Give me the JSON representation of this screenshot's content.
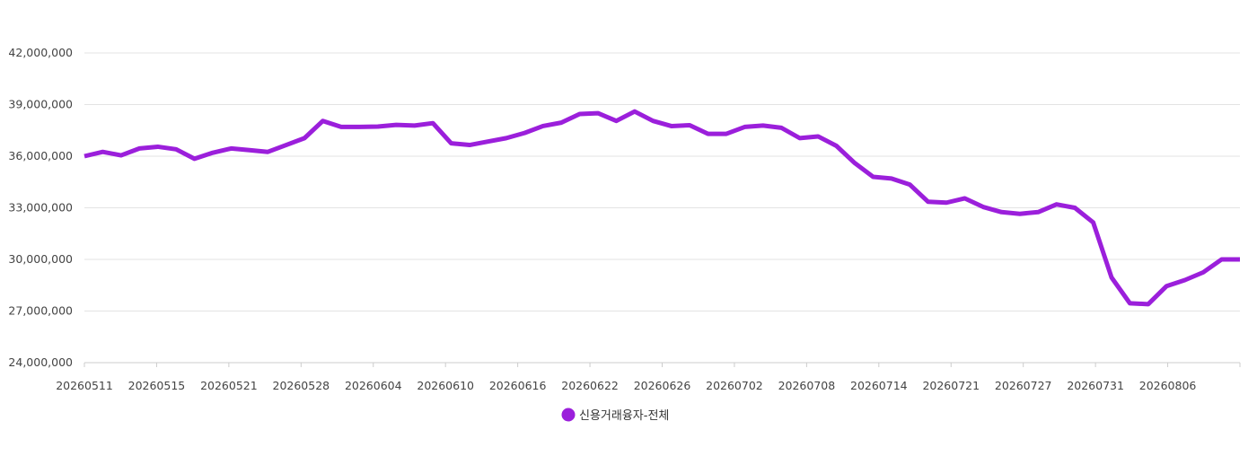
{
  "chart_data": {
    "type": "line",
    "title": "",
    "xlabel": "",
    "ylabel": "",
    "ylim": [
      24000000,
      42000000
    ],
    "y_ticks": [
      24000000,
      27000000,
      30000000,
      33000000,
      36000000,
      39000000,
      42000000
    ],
    "y_tick_labels": [
      "24,000,000",
      "27,000,000",
      "30,000,000",
      "33,000,000",
      "36,000,000",
      "39,000,000",
      "42,000,000"
    ],
    "x_tick_labels": [
      "20260511",
      "20260515",
      "20260521",
      "20260528",
      "20260604",
      "20260610",
      "20260616",
      "20260622",
      "20260626",
      "20260702",
      "20260708",
      "20260714",
      "20260721",
      "20260727",
      "20260731",
      "20260806"
    ],
    "grid": true,
    "legend_position": "bottom-center",
    "series": [
      {
        "name": "신용거래융자-전체",
        "color": "#9b1fdb",
        "values": [
          36000000,
          36250000,
          36050000,
          36450000,
          36550000,
          36400000,
          35850000,
          36200000,
          36450000,
          36350000,
          36250000,
          36650000,
          37050000,
          38050000,
          37700000,
          37700000,
          37720000,
          37820000,
          37780000,
          37920000,
          36750000,
          36650000,
          36850000,
          37050000,
          37350000,
          37750000,
          37950000,
          38450000,
          38500000,
          38050000,
          38600000,
          38050000,
          37750000,
          37800000,
          37300000,
          37300000,
          37700000,
          37780000,
          37650000,
          37050000,
          37150000,
          36600000,
          35600000,
          34800000,
          34700000,
          34350000,
          33350000,
          33300000,
          33550000,
          33050000,
          32750000,
          32650000,
          32750000,
          33200000,
          33000000,
          32150000,
          28950000,
          27450000,
          27400000,
          28450000,
          28800000,
          29250000,
          30000000,
          30000000
        ]
      }
    ]
  }
}
